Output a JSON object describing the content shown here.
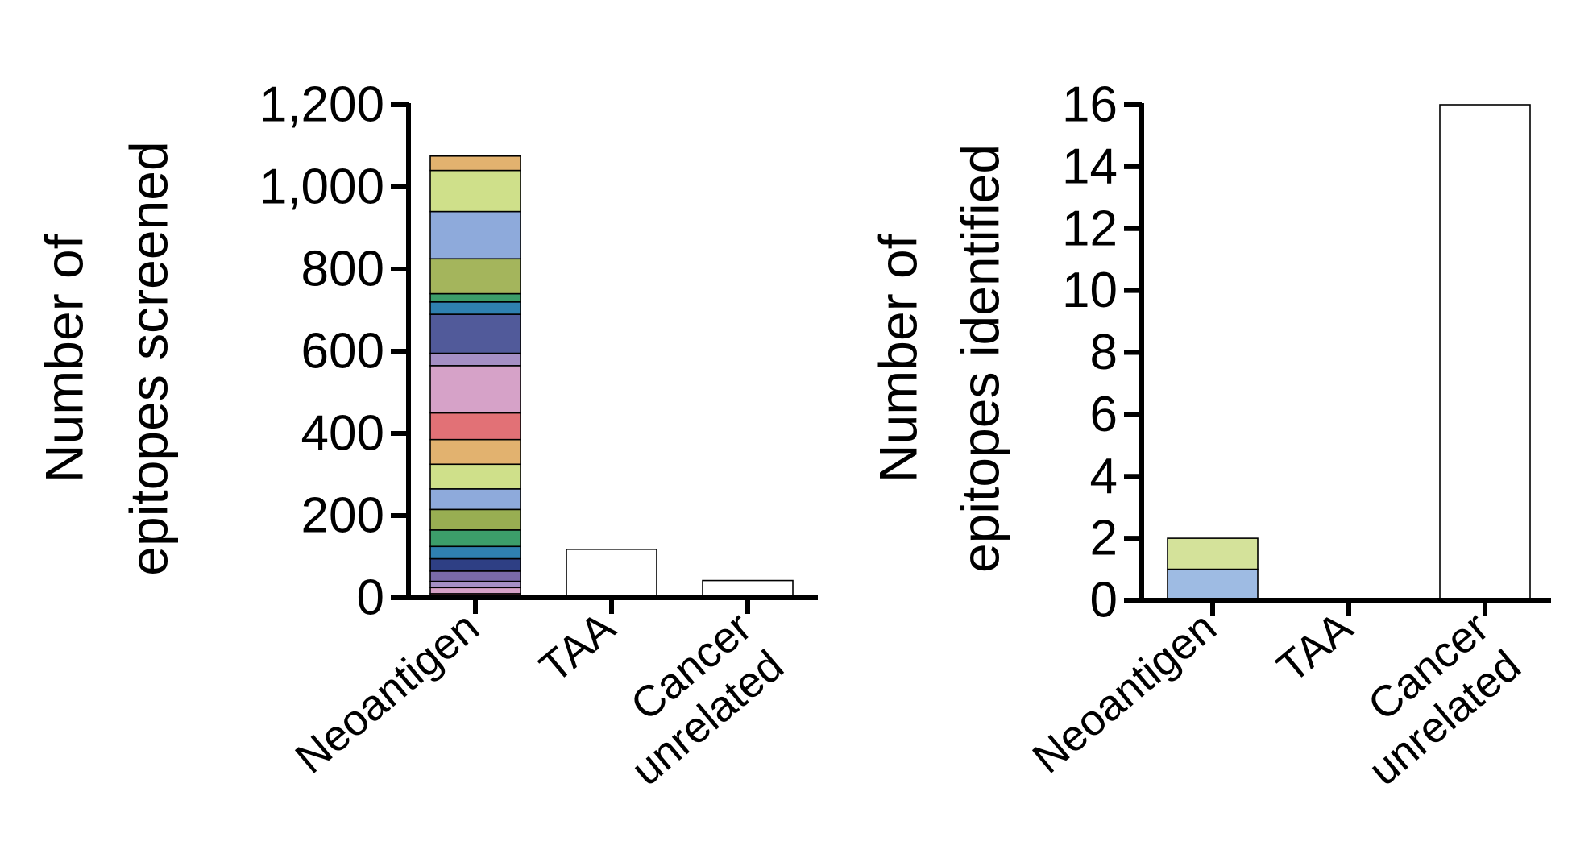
{
  "chart_data": [
    {
      "type": "bar",
      "stacked": true,
      "ylabel_lines": [
        "Number of",
        "epitopes screened"
      ],
      "categories": [
        {
          "lines": [
            "Neoantigen"
          ]
        },
        {
          "lines": [
            "TAA"
          ]
        },
        {
          "lines": [
            "Cancer",
            "unrelated"
          ]
        }
      ],
      "ylim": [
        0,
        1200
      ],
      "ticks": [
        {
          "value": 0,
          "label": "0"
        },
        {
          "value": 200,
          "label": "200"
        },
        {
          "value": 400,
          "label": "400"
        },
        {
          "value": 600,
          "label": "600"
        },
        {
          "value": 800,
          "label": "800"
        },
        {
          "value": 1000,
          "label": "1,000"
        },
        {
          "value": 1200,
          "label": "1,200"
        }
      ],
      "stacks": [
        {
          "category": "Neoantigen",
          "segments": [
            {
              "value": 10,
              "color": "#d9606b"
            },
            {
              "value": 15,
              "color": "#d6a2c6"
            },
            {
              "value": 15,
              "color": "#a58fc4"
            },
            {
              "value": 25,
              "color": "#7a6aa8"
            },
            {
              "value": 30,
              "color": "#2e3f84"
            },
            {
              "value": 30,
              "color": "#2f80b0"
            },
            {
              "value": 40,
              "color": "#3c9e6a"
            },
            {
              "value": 50,
              "color": "#98ae52"
            },
            {
              "value": 50,
              "color": "#8eaadb"
            },
            {
              "value": 60,
              "color": "#cfe08a"
            },
            {
              "value": 60,
              "color": "#e2b26f"
            },
            {
              "value": 65,
              "color": "#e27176"
            },
            {
              "value": 115,
              "color": "#d6a2c8"
            },
            {
              "value": 30,
              "color": "#a58fc4"
            },
            {
              "value": 95,
              "color": "#515a9a"
            },
            {
              "value": 30,
              "color": "#2f80b0"
            },
            {
              "value": 20,
              "color": "#3c9e6a"
            },
            {
              "value": 85,
              "color": "#a4b55c"
            },
            {
              "value": 115,
              "color": "#8eaadb"
            },
            {
              "value": 100,
              "color": "#cfe08a"
            },
            {
              "value": 35,
              "color": "#e2b26f"
            }
          ]
        },
        {
          "category": "TAA",
          "segments": [
            {
              "value": 118,
              "color": "#ffffff"
            }
          ]
        },
        {
          "category": "Cancer unrelated",
          "segments": [
            {
              "value": 42,
              "color": "#ffffff"
            }
          ]
        }
      ]
    },
    {
      "type": "bar",
      "stacked": true,
      "ylabel_lines": [
        "Number of",
        "epitopes identified"
      ],
      "categories": [
        {
          "lines": [
            "Neoantigen"
          ]
        },
        {
          "lines": [
            "TAA"
          ]
        },
        {
          "lines": [
            "Cancer",
            "unrelated"
          ]
        }
      ],
      "ylim": [
        0,
        16
      ],
      "ticks": [
        {
          "value": 0,
          "label": "0"
        },
        {
          "value": 2,
          "label": "2"
        },
        {
          "value": 4,
          "label": "4"
        },
        {
          "value": 6,
          "label": "6"
        },
        {
          "value": 8,
          "label": "8"
        },
        {
          "value": 10,
          "label": "10"
        },
        {
          "value": 12,
          "label": "12"
        },
        {
          "value": 14,
          "label": "14"
        },
        {
          "value": 16,
          "label": "16"
        }
      ],
      "stacks": [
        {
          "category": "Neoantigen",
          "segments": [
            {
              "value": 1,
              "color": "#9ebbe3"
            },
            {
              "value": 1,
              "color": "#d4e29a"
            }
          ]
        },
        {
          "category": "TAA",
          "segments": []
        },
        {
          "category": "Cancer unrelated",
          "segments": [
            {
              "value": 16,
              "color": "#ffffff"
            }
          ]
        }
      ]
    }
  ]
}
